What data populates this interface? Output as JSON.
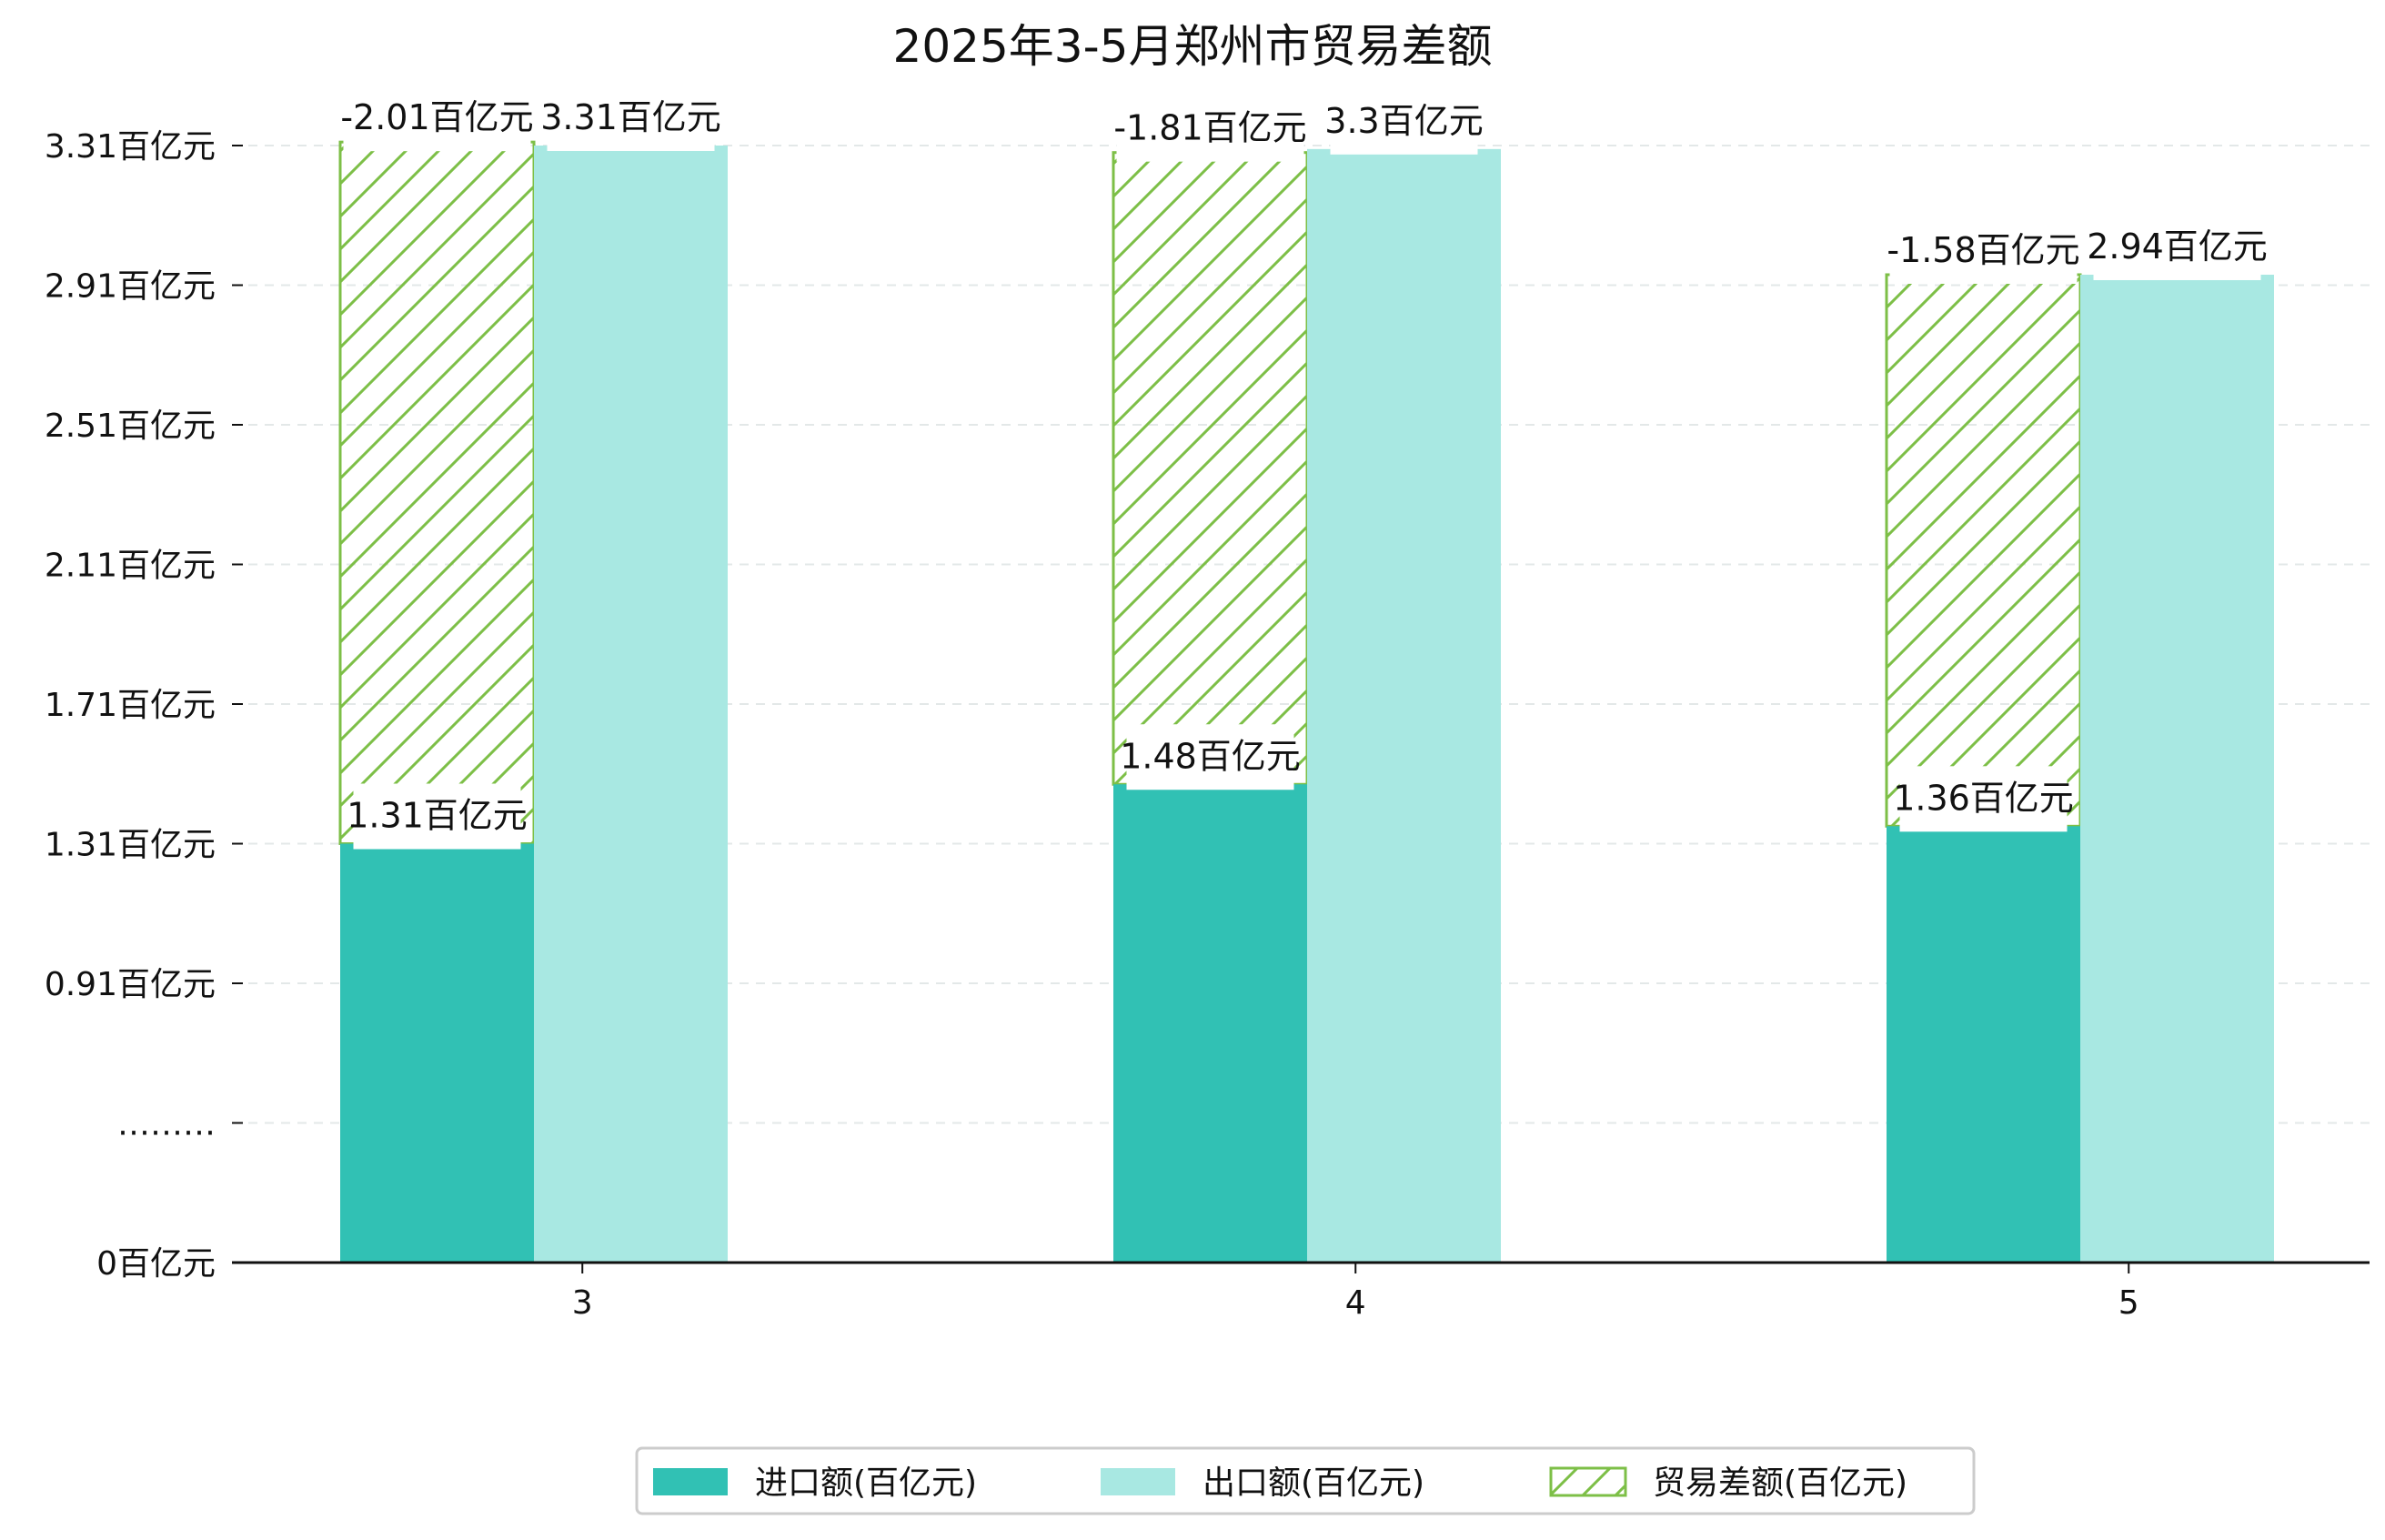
{
  "chart_data": {
    "type": "bar",
    "title": "2025年3-5月郑州市贸易差额",
    "categories": [
      "3",
      "4",
      "5"
    ],
    "series": [
      {
        "name": "进口额(百亿元)",
        "values": [
          1.31,
          1.48,
          1.36
        ],
        "labels": [
          "1.31百亿元",
          "1.48百亿元",
          "1.36百亿元"
        ],
        "color": "#31C1B4"
      },
      {
        "name": "出口额(百亿元)",
        "values": [
          3.31,
          3.3,
          2.94
        ],
        "labels": [
          "3.31百亿元",
          "3.3百亿元",
          "2.94百亿元"
        ],
        "color": "#A8E8E2"
      },
      {
        "name": "贸易差额(百亿元)",
        "values": [
          -2.01,
          -1.81,
          -1.58
        ],
        "labels": [
          "-2.01百亿元",
          "-1.81百亿元",
          "-1.58百亿元"
        ],
        "color": "#7DBF47",
        "pattern": "hatched"
      }
    ],
    "y_ticks": [
      "0百亿元",
      "………",
      "0.91百亿元",
      "1.31百亿元",
      "1.71百亿元",
      "2.11百亿元",
      "2.51百亿元",
      "2.91百亿元",
      "3.31百亿元"
    ],
    "y_axis_break": true,
    "grid": "horizontal dashed",
    "legend_position": "bottom-center",
    "xlabel": "",
    "ylabel": ""
  }
}
